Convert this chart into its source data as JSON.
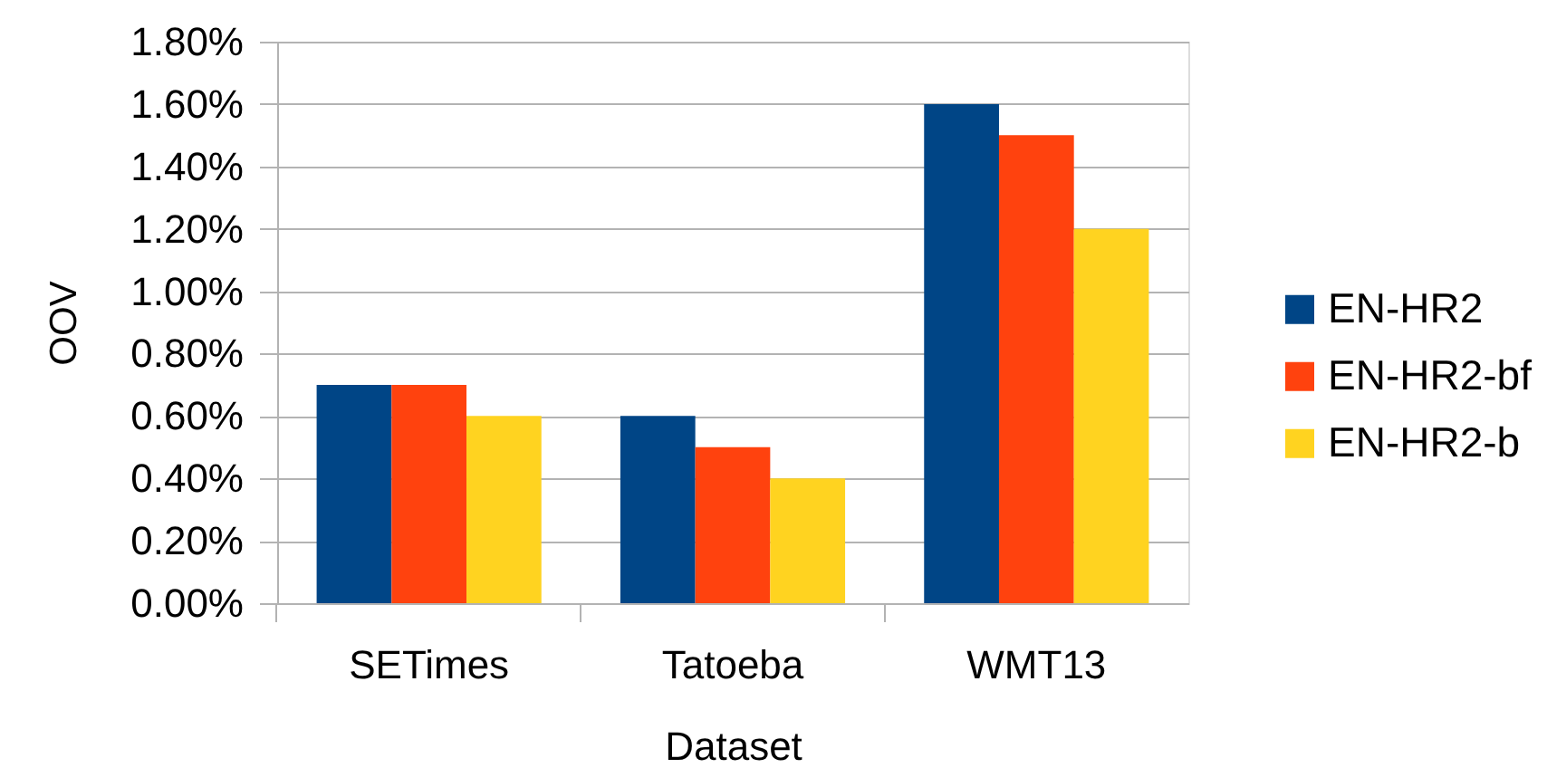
{
  "chart_data": {
    "type": "bar",
    "xlabel": "Dataset",
    "ylabel": "OOV",
    "categories": [
      "SETimes",
      "Tatoeba",
      "WMT13"
    ],
    "series": [
      {
        "name": "EN-HR2",
        "color": "#004586",
        "values": [
          0.7,
          0.6,
          1.6
        ]
      },
      {
        "name": "EN-HR2-bf",
        "color": "#ff420e",
        "values": [
          0.7,
          0.5,
          1.5
        ]
      },
      {
        "name": "EN-HR2-b",
        "color": "#ffd320",
        "values": [
          0.6,
          0.4,
          1.2
        ]
      }
    ],
    "ylim": [
      0,
      1.8
    ],
    "yticks": [
      {
        "value": 0,
        "label": "0.00%"
      },
      {
        "value": 0.2,
        "label": "0.20%"
      },
      {
        "value": 0.4,
        "label": "0.40%"
      },
      {
        "value": 0.6,
        "label": "0.60%"
      },
      {
        "value": 0.8,
        "label": "0.80%"
      },
      {
        "value": 1.0,
        "label": "1.00%"
      },
      {
        "value": 1.2,
        "label": "1.20%"
      },
      {
        "value": 1.4,
        "label": "1.40%"
      },
      {
        "value": 1.6,
        "label": "1.60%"
      },
      {
        "value": 1.8,
        "label": "1.80%"
      }
    ],
    "grid": "y",
    "legend": "right"
  }
}
